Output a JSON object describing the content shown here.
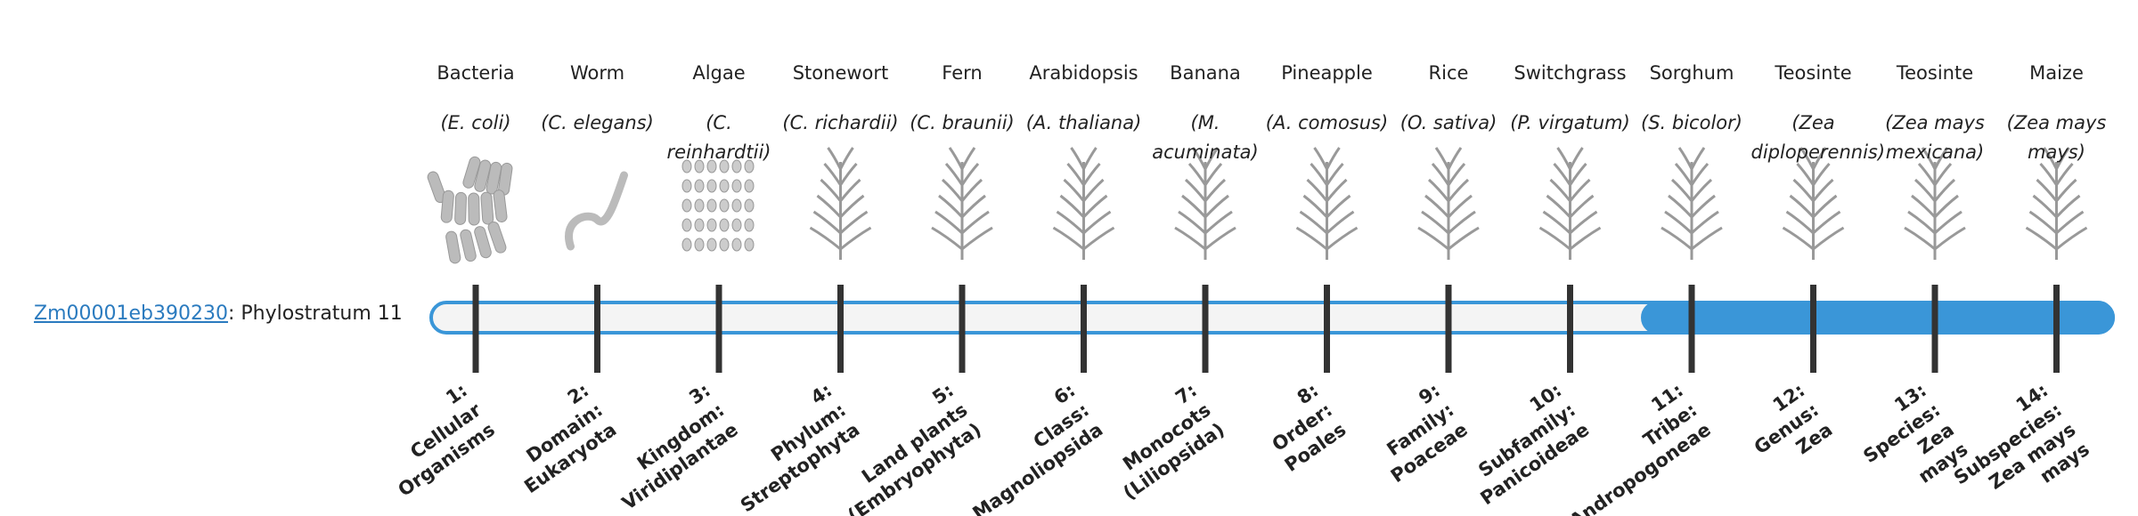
{
  "gene": {
    "id": "Zm00001eb390230",
    "suffix": ": Phylostratum 11"
  },
  "strata": [
    {
      "name": "Bacteria",
      "species": "(E. coli)",
      "label": [
        "1:",
        "Cellular",
        "Organisms"
      ]
    },
    {
      "name": "Worm",
      "species": "(C. elegans)",
      "label": [
        "2:",
        "Domain:",
        "Eukaryota"
      ]
    },
    {
      "name": "Algae",
      "species": "(C. reinhardtii)",
      "label": [
        "3:",
        "Kingdom:",
        "Viridiplantae"
      ]
    },
    {
      "name": "Stonewort",
      "species": "(C. richardii)",
      "label": [
        "4:",
        "Phylum:",
        "Streptophyta"
      ]
    },
    {
      "name": "Fern",
      "species": "(C. braunii)",
      "label": [
        "5:",
        "Land plants",
        "(Embryophyta)"
      ]
    },
    {
      "name": "Arabidopsis",
      "species": "(A. thaliana)",
      "label": [
        "6:",
        "Class:",
        "Magnoliopsida"
      ]
    },
    {
      "name": "Banana",
      "species": "(M. acuminata)",
      "label": [
        "7:",
        "Monocots",
        "(Liliopsida)"
      ]
    },
    {
      "name": "Pineapple",
      "species": "(A. comosus)",
      "label": [
        "8:",
        "Order:",
        "Poales"
      ]
    },
    {
      "name": "Rice",
      "species": "(O. sativa)",
      "label": [
        "9:",
        "Family:",
        "Poaceae"
      ]
    },
    {
      "name": "Switchgrass",
      "species": "(P. virgatum)",
      "label": [
        "10:",
        "Subfamily:",
        "Panicoideae"
      ]
    },
    {
      "name": "Sorghum",
      "species": "(S. bicolor)",
      "label": [
        "11:",
        "Tribe:",
        "Andropogoneae"
      ],
      "active": true
    },
    {
      "name": "Teosinte",
      "species": "(Zea diploperennis)",
      "label": [
        "12:",
        "Genus:",
        "Zea"
      ]
    },
    {
      "name": "Teosinte",
      "species": "(Zea mays mexicana)",
      "label": [
        "13:",
        "Species:",
        "Zea",
        "mays"
      ]
    },
    {
      "name": "Maize",
      "species": "(Zea mays mays)",
      "label": [
        "14:",
        "Subspecies:",
        "Zea mays",
        "mays"
      ]
    }
  ]
}
